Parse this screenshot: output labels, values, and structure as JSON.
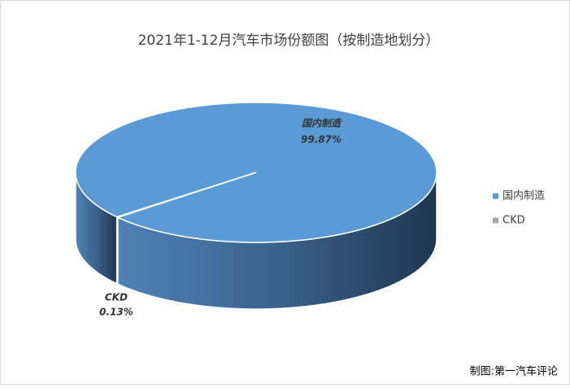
{
  "chart_data": {
    "type": "pie",
    "title": "2021年1-12月汽车市场份额图（按制造地划分）",
    "categories": [
      "国内制造",
      "CKD"
    ],
    "values": [
      99.87,
      0.13
    ],
    "value_labels": [
      "99.87%",
      "0.13%"
    ],
    "colors": [
      "#5b9bd5",
      "#a5a5a5"
    ],
    "legend": "right",
    "source": "制图:第一汽车评论"
  }
}
